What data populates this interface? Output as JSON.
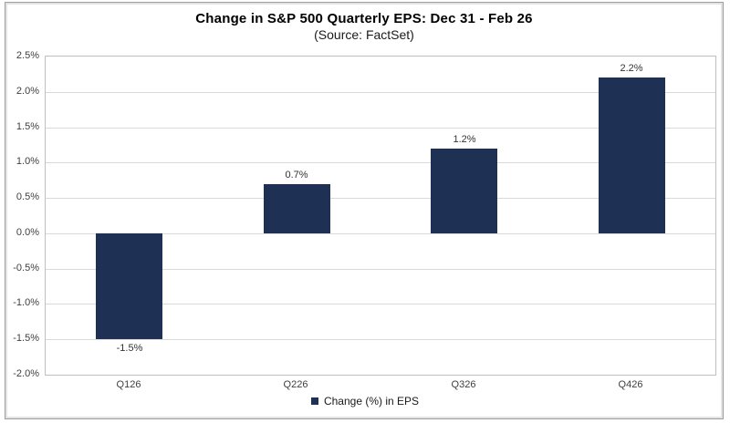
{
  "chart_data": {
    "type": "bar",
    "title": "Change in S&P 500 Quarterly EPS: Dec 31 - Feb 26",
    "subtitle": "(Source: FactSet)",
    "categories": [
      "Q126",
      "Q226",
      "Q326",
      "Q426"
    ],
    "values": [
      -1.5,
      0.7,
      1.2,
      2.2
    ],
    "value_labels": [
      "-1.5%",
      "0.7%",
      "1.2%",
      "2.2%"
    ],
    "series_name": "Change (%) in EPS",
    "legend": [
      "Change (%) in EPS"
    ],
    "legend_position": "bottom",
    "xlabel": "",
    "ylabel": "",
    "ylim": [
      -2.0,
      2.5
    ],
    "ytick_step": 0.5,
    "ytick_labels": [
      "2.5%",
      "2.0%",
      "1.5%",
      "1.0%",
      "0.5%",
      "0.0%",
      "-0.5%",
      "-1.0%",
      "-1.5%",
      "-2.0%"
    ],
    "grid": true,
    "bar_color": "#1f3055"
  },
  "appearance": {
    "bar_color": "#1f3055",
    "gridline_color": "#d9d9d9",
    "plot_border_color": "#bfbfbf",
    "outer_border_color": "#9e9e9e",
    "tick_text_color": "#3f3f3f",
    "value_label_color": "#333333"
  }
}
